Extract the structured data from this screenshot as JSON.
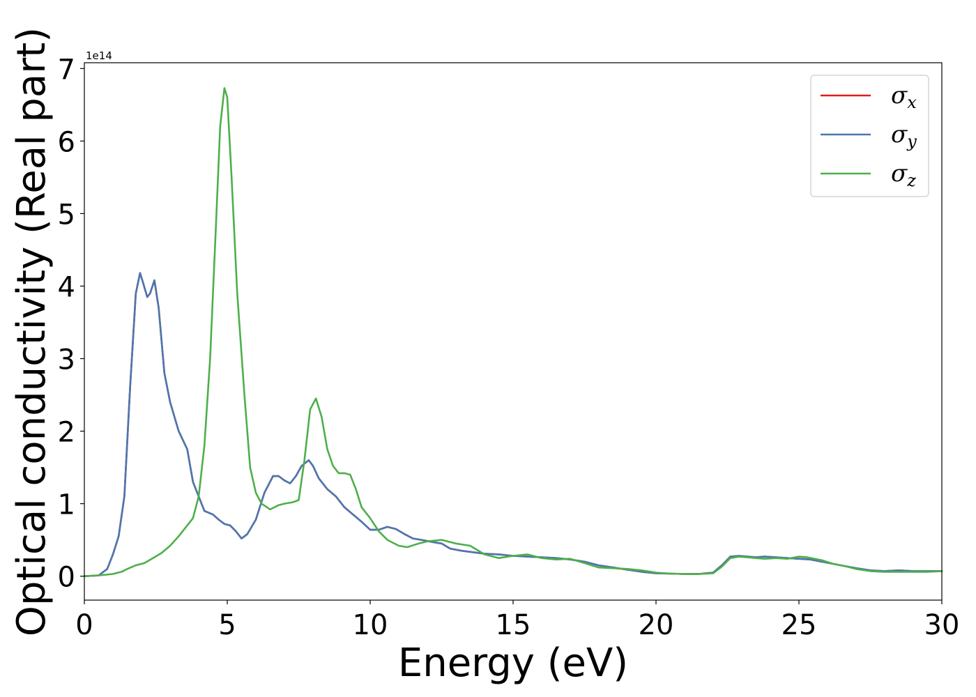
{
  "chart_data": {
    "type": "line",
    "title": "",
    "xlabel": "Energy (eV)",
    "ylabel": "Optical conductivity (Real part)",
    "y_offset_label": "1e14",
    "xlim": [
      0,
      30
    ],
    "ylim": [
      -0.33,
      7.08
    ],
    "x_ticks": [
      0,
      5,
      10,
      15,
      20,
      25,
      30
    ],
    "y_ticks": [
      0,
      1,
      2,
      3,
      4,
      5,
      6,
      7
    ],
    "grid": false,
    "legend_position": "top-right",
    "series": [
      {
        "name": "σx",
        "legend_base": "σ",
        "legend_sub": "x",
        "color": "#e41a1c",
        "x": [
          0,
          0.5,
          0.8,
          1.0,
          1.2,
          1.4,
          1.6,
          1.8,
          1.95,
          2.05,
          2.2,
          2.3,
          2.45,
          2.6,
          2.8,
          3.0,
          3.3,
          3.6,
          3.8,
          4.0,
          4.2,
          4.5,
          4.7,
          4.9,
          5.1,
          5.3,
          5.5,
          5.7,
          6.0,
          6.3,
          6.6,
          6.8,
          7.0,
          7.2,
          7.4,
          7.6,
          7.85,
          8.0,
          8.2,
          8.5,
          8.8,
          9.1,
          9.4,
          9.7,
          10.0,
          10.3,
          10.6,
          10.9,
          11.2,
          11.5,
          11.8,
          12.2,
          12.5,
          12.8,
          13.2,
          13.6,
          14.0,
          14.5,
          15.0,
          15.5,
          16.0,
          16.5,
          17.0,
          17.5,
          18.0,
          18.5,
          19.0,
          19.5,
          20.0,
          20.5,
          21.0,
          21.5,
          22.0,
          22.3,
          22.6,
          22.9,
          23.2,
          23.5,
          23.8,
          24.2,
          24.6,
          25.0,
          25.4,
          25.8,
          26.2,
          26.6,
          27.0,
          27.5,
          28.0,
          28.5,
          29.0,
          29.5,
          30.0
        ],
        "values": [
          0,
          0.01,
          0.1,
          0.3,
          0.55,
          1.1,
          2.6,
          3.9,
          4.18,
          4.05,
          3.85,
          3.9,
          4.08,
          3.7,
          2.8,
          2.4,
          2.0,
          1.75,
          1.3,
          1.1,
          0.9,
          0.85,
          0.78,
          0.72,
          0.7,
          0.62,
          0.52,
          0.58,
          0.78,
          1.15,
          1.38,
          1.38,
          1.32,
          1.28,
          1.38,
          1.52,
          1.6,
          1.52,
          1.35,
          1.2,
          1.1,
          0.95,
          0.85,
          0.75,
          0.64,
          0.64,
          0.68,
          0.65,
          0.58,
          0.52,
          0.5,
          0.47,
          0.45,
          0.38,
          0.35,
          0.33,
          0.31,
          0.3,
          0.28,
          0.27,
          0.26,
          0.25,
          0.23,
          0.2,
          0.15,
          0.12,
          0.09,
          0.06,
          0.04,
          0.035,
          0.03,
          0.03,
          0.05,
          0.15,
          0.27,
          0.28,
          0.27,
          0.26,
          0.27,
          0.26,
          0.25,
          0.24,
          0.23,
          0.2,
          0.17,
          0.14,
          0.11,
          0.08,
          0.07,
          0.08,
          0.07,
          0.07,
          0.07
        ]
      },
      {
        "name": "σy",
        "legend_base": "σ",
        "legend_sub": "y",
        "color": "#4a78b0",
        "x": [
          0,
          0.5,
          0.8,
          1.0,
          1.2,
          1.4,
          1.6,
          1.8,
          1.95,
          2.05,
          2.2,
          2.3,
          2.45,
          2.6,
          2.8,
          3.0,
          3.3,
          3.6,
          3.8,
          4.0,
          4.2,
          4.5,
          4.7,
          4.9,
          5.1,
          5.3,
          5.5,
          5.7,
          6.0,
          6.3,
          6.6,
          6.8,
          7.0,
          7.2,
          7.4,
          7.6,
          7.85,
          8.0,
          8.2,
          8.5,
          8.8,
          9.1,
          9.4,
          9.7,
          10.0,
          10.3,
          10.6,
          10.9,
          11.2,
          11.5,
          11.8,
          12.2,
          12.5,
          12.8,
          13.2,
          13.6,
          14.0,
          14.5,
          15.0,
          15.5,
          16.0,
          16.5,
          17.0,
          17.5,
          18.0,
          18.5,
          19.0,
          19.5,
          20.0,
          20.5,
          21.0,
          21.5,
          22.0,
          22.3,
          22.6,
          22.9,
          23.2,
          23.5,
          23.8,
          24.2,
          24.6,
          25.0,
          25.4,
          25.8,
          26.2,
          26.6,
          27.0,
          27.5,
          28.0,
          28.5,
          29.0,
          29.5,
          30.0
        ],
        "values": [
          0,
          0.01,
          0.1,
          0.3,
          0.55,
          1.1,
          2.6,
          3.9,
          4.18,
          4.05,
          3.85,
          3.9,
          4.08,
          3.7,
          2.8,
          2.4,
          2.0,
          1.75,
          1.3,
          1.1,
          0.9,
          0.85,
          0.78,
          0.72,
          0.7,
          0.62,
          0.52,
          0.58,
          0.78,
          1.15,
          1.38,
          1.38,
          1.32,
          1.28,
          1.38,
          1.52,
          1.6,
          1.52,
          1.35,
          1.2,
          1.1,
          0.95,
          0.85,
          0.75,
          0.64,
          0.64,
          0.68,
          0.65,
          0.58,
          0.52,
          0.5,
          0.47,
          0.45,
          0.38,
          0.35,
          0.33,
          0.31,
          0.3,
          0.28,
          0.27,
          0.26,
          0.25,
          0.23,
          0.2,
          0.15,
          0.12,
          0.09,
          0.06,
          0.04,
          0.035,
          0.03,
          0.03,
          0.05,
          0.15,
          0.27,
          0.28,
          0.27,
          0.26,
          0.27,
          0.26,
          0.25,
          0.24,
          0.23,
          0.2,
          0.17,
          0.14,
          0.11,
          0.08,
          0.07,
          0.08,
          0.07,
          0.07,
          0.07
        ]
      },
      {
        "name": "σz",
        "legend_base": "σ",
        "legend_sub": "z",
        "color": "#4daf4a",
        "x": [
          0,
          0.5,
          1.0,
          1.3,
          1.5,
          1.8,
          2.1,
          2.4,
          2.7,
          3.0,
          3.3,
          3.6,
          3.8,
          4.0,
          4.2,
          4.4,
          4.6,
          4.75,
          4.9,
          5.0,
          5.15,
          5.35,
          5.6,
          5.8,
          6.0,
          6.2,
          6.5,
          6.8,
          7.0,
          7.3,
          7.5,
          7.7,
          7.9,
          8.1,
          8.3,
          8.5,
          8.7,
          8.9,
          9.1,
          9.3,
          9.5,
          9.7,
          10.0,
          10.3,
          10.6,
          11.0,
          11.3,
          11.7,
          12.0,
          12.5,
          13.0,
          13.5,
          14.0,
          14.5,
          15.0,
          15.5,
          16.0,
          16.5,
          17.0,
          17.5,
          18.0,
          18.5,
          19.0,
          19.5,
          20.0,
          20.5,
          21.0,
          21.5,
          22.0,
          22.3,
          22.6,
          22.9,
          23.2,
          23.5,
          23.8,
          24.2,
          24.6,
          25.0,
          25.3,
          25.8,
          26.2,
          26.6,
          27.0,
          27.5,
          28.0,
          28.5,
          29.0,
          29.5,
          30.0
        ],
        "values": [
          0,
          0.01,
          0.03,
          0.06,
          0.1,
          0.15,
          0.18,
          0.25,
          0.32,
          0.42,
          0.55,
          0.7,
          0.8,
          1.1,
          1.8,
          3.0,
          4.8,
          6.2,
          6.73,
          6.6,
          5.5,
          3.9,
          2.5,
          1.5,
          1.15,
          1.0,
          0.92,
          0.98,
          1.0,
          1.02,
          1.05,
          1.6,
          2.3,
          2.45,
          2.2,
          1.75,
          1.52,
          1.42,
          1.42,
          1.4,
          1.2,
          0.95,
          0.8,
          0.62,
          0.5,
          0.42,
          0.4,
          0.45,
          0.48,
          0.5,
          0.45,
          0.42,
          0.3,
          0.25,
          0.28,
          0.3,
          0.25,
          0.23,
          0.24,
          0.18,
          0.12,
          0.11,
          0.1,
          0.08,
          0.05,
          0.035,
          0.03,
          0.03,
          0.04,
          0.13,
          0.25,
          0.27,
          0.26,
          0.25,
          0.24,
          0.25,
          0.24,
          0.27,
          0.26,
          0.22,
          0.17,
          0.14,
          0.1,
          0.07,
          0.06,
          0.06,
          0.06,
          0.06,
          0.07
        ]
      }
    ]
  }
}
